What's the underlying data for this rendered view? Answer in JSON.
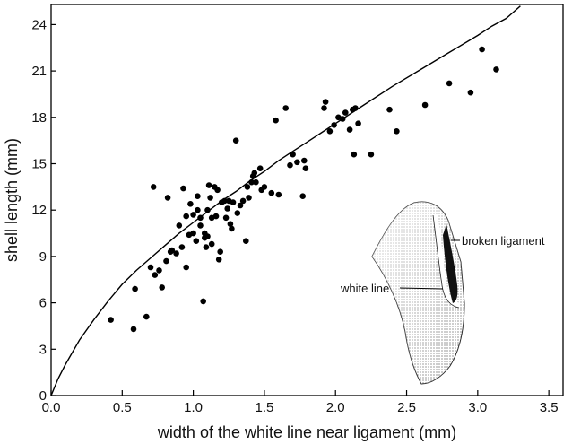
{
  "chart_data": {
    "type": "scatter",
    "title": "",
    "xlabel": "width of the white line near ligament (mm)",
    "ylabel": "shell length (mm)",
    "xlim": [
      0,
      3.6
    ],
    "ylim": [
      0,
      25.3
    ],
    "xticks": [
      "0.0",
      "0.5",
      "1.0",
      "1.5",
      "2.0",
      "2.5",
      "3.0",
      "3.5"
    ],
    "yticks": [
      "0",
      "3",
      "6",
      "9",
      "12",
      "15",
      "18",
      "21",
      "24"
    ],
    "grid": false,
    "points": [
      [
        0.42,
        4.9
      ],
      [
        0.58,
        4.3
      ],
      [
        0.59,
        6.9
      ],
      [
        0.67,
        5.1
      ],
      [
        0.7,
        8.3
      ],
      [
        0.72,
        13.5
      ],
      [
        0.73,
        7.8
      ],
      [
        0.76,
        8.1
      ],
      [
        0.78,
        7.0
      ],
      [
        0.81,
        8.7
      ],
      [
        0.82,
        12.8
      ],
      [
        0.84,
        9.3
      ],
      [
        0.85,
        9.4
      ],
      [
        0.88,
        9.2
      ],
      [
        0.9,
        11.0
      ],
      [
        0.92,
        9.6
      ],
      [
        0.93,
        13.4
      ],
      [
        0.95,
        8.3
      ],
      [
        0.95,
        11.6
      ],
      [
        0.97,
        10.4
      ],
      [
        0.98,
        12.4
      ],
      [
        1.0,
        11.7
      ],
      [
        1.0,
        10.5
      ],
      [
        1.02,
        10.0
      ],
      [
        1.03,
        12.9
      ],
      [
        1.03,
        12.0
      ],
      [
        1.05,
        11.5
      ],
      [
        1.05,
        11.0
      ],
      [
        1.07,
        6.1
      ],
      [
        1.08,
        10.5
      ],
      [
        1.08,
        10.2
      ],
      [
        1.09,
        9.6
      ],
      [
        1.1,
        10.3
      ],
      [
        1.1,
        12.0
      ],
      [
        1.11,
        13.6
      ],
      [
        1.12,
        12.8
      ],
      [
        1.13,
        9.8
      ],
      [
        1.13,
        11.5
      ],
      [
        1.15,
        13.5
      ],
      [
        1.16,
        11.6
      ],
      [
        1.17,
        13.3
      ],
      [
        1.18,
        8.8
      ],
      [
        1.19,
        9.3
      ],
      [
        1.2,
        12.5
      ],
      [
        1.22,
        12.6
      ],
      [
        1.23,
        11.5
      ],
      [
        1.24,
        12.1
      ],
      [
        1.25,
        12.6
      ],
      [
        1.26,
        11.1
      ],
      [
        1.27,
        10.8
      ],
      [
        1.28,
        12.5
      ],
      [
        1.3,
        16.5
      ],
      [
        1.31,
        11.8
      ],
      [
        1.33,
        12.3
      ],
      [
        1.35,
        12.6
      ],
      [
        1.37,
        10.0
      ],
      [
        1.38,
        13.5
      ],
      [
        1.39,
        12.8
      ],
      [
        1.41,
        13.8
      ],
      [
        1.42,
        14.2
      ],
      [
        1.43,
        14.4
      ],
      [
        1.44,
        13.8
      ],
      [
        1.47,
        14.7
      ],
      [
        1.48,
        13.3
      ],
      [
        1.5,
        13.5
      ],
      [
        1.55,
        13.1
      ],
      [
        1.58,
        17.8
      ],
      [
        1.6,
        13.0
      ],
      [
        1.65,
        18.6
      ],
      [
        1.68,
        14.9
      ],
      [
        1.7,
        15.6
      ],
      [
        1.73,
        15.1
      ],
      [
        1.77,
        12.9
      ],
      [
        1.78,
        15.2
      ],
      [
        1.79,
        14.7
      ],
      [
        1.92,
        18.6
      ],
      [
        1.93,
        19.0
      ],
      [
        1.96,
        17.1
      ],
      [
        1.99,
        17.5
      ],
      [
        2.02,
        18.0
      ],
      [
        2.05,
        17.9
      ],
      [
        2.07,
        18.3
      ],
      [
        2.1,
        17.2
      ],
      [
        2.12,
        18.5
      ],
      [
        2.13,
        15.6
      ],
      [
        2.14,
        18.6
      ],
      [
        2.16,
        17.6
      ],
      [
        2.25,
        15.6
      ],
      [
        2.38,
        18.5
      ],
      [
        2.43,
        17.1
      ],
      [
        2.63,
        18.8
      ],
      [
        2.8,
        20.2
      ],
      [
        2.95,
        19.6
      ],
      [
        3.03,
        22.4
      ],
      [
        3.13,
        21.1
      ]
    ],
    "fit_curve": [
      [
        0.0,
        0.0
      ],
      [
        0.05,
        1.1
      ],
      [
        0.1,
        2.0
      ],
      [
        0.2,
        3.6
      ],
      [
        0.3,
        4.9
      ],
      [
        0.4,
        6.1
      ],
      [
        0.5,
        7.2
      ],
      [
        0.6,
        8.1
      ],
      [
        0.7,
        8.9
      ],
      [
        0.8,
        9.7
      ],
      [
        0.9,
        10.5
      ],
      [
        1.0,
        11.2
      ],
      [
        1.1,
        11.9
      ],
      [
        1.2,
        12.6
      ],
      [
        1.3,
        13.2
      ],
      [
        1.4,
        13.9
      ],
      [
        1.5,
        14.5
      ],
      [
        1.6,
        15.2
      ],
      [
        1.7,
        15.8
      ],
      [
        1.8,
        16.4
      ],
      [
        1.9,
        17.0
      ],
      [
        2.0,
        17.6
      ],
      [
        2.2,
        18.8
      ],
      [
        2.4,
        20.0
      ],
      [
        2.6,
        21.1
      ],
      [
        2.8,
        22.2
      ],
      [
        3.0,
        23.3
      ],
      [
        3.1,
        23.9
      ],
      [
        3.2,
        24.4
      ],
      [
        3.25,
        24.8
      ],
      [
        3.3,
        25.2
      ]
    ],
    "annotations": [
      "broken ligament",
      "white line"
    ]
  }
}
